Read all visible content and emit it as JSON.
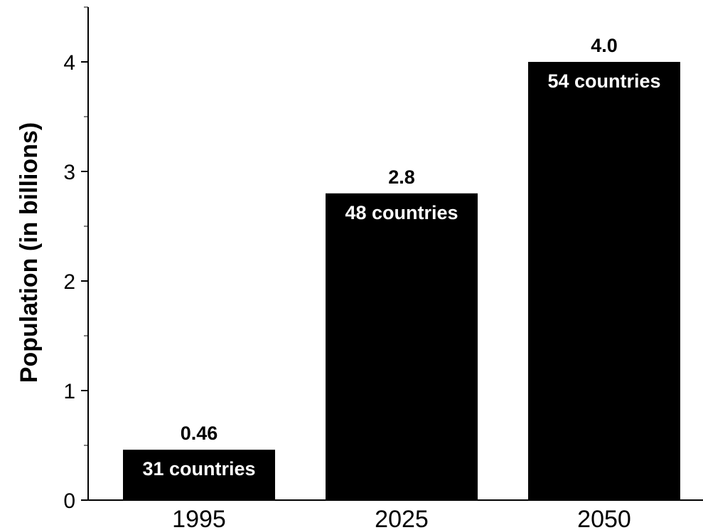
{
  "chart_data": {
    "type": "bar",
    "title": "",
    "xlabel": "",
    "ylabel": "Population (in billions)",
    "categories": [
      "1995",
      "2025",
      "2050"
    ],
    "values": [
      0.46,
      2.8,
      4.0
    ],
    "value_labels": [
      "0.46",
      "2.8",
      "4.0"
    ],
    "bar_annotations": [
      "31 countries",
      "48 countries",
      "54 countries"
    ],
    "ylim": [
      0,
      4.5
    ],
    "y_ticks": [
      0,
      1,
      2,
      3,
      4
    ],
    "y_tick_labels": [
      "0",
      "1",
      "2",
      "3",
      "4"
    ],
    "y_minor_step": 0.5,
    "grid": false,
    "legend": "none",
    "bar_color": "#000000",
    "annotation_color": "#ffffff"
  }
}
